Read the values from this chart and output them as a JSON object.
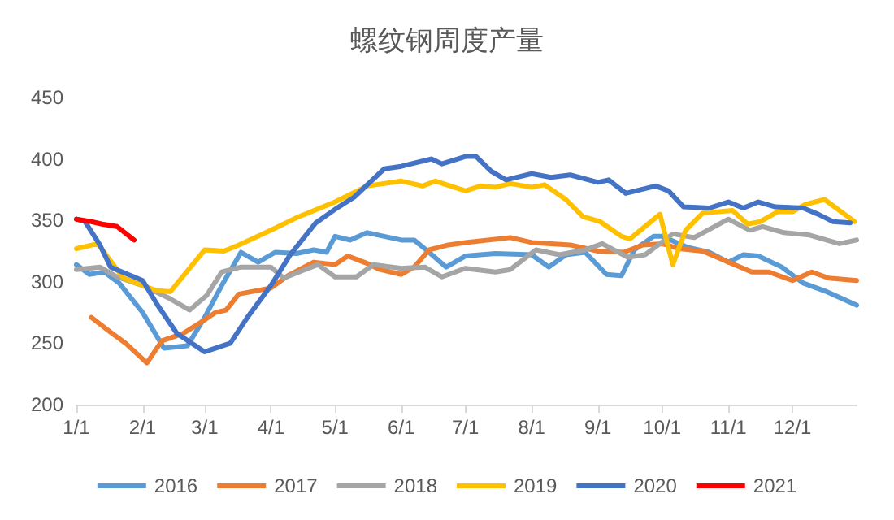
{
  "chart_data": {
    "type": "line",
    "title": "螺纹钢周度产量",
    "xlim": [
      "--01-01",
      "--12-31"
    ],
    "ylim": [
      200,
      450
    ],
    "yticks": [
      200,
      250,
      300,
      350,
      400,
      450
    ],
    "xticks": [
      {
        "value": "--01-01",
        "label": "1/1"
      },
      {
        "value": "--02-01",
        "label": "2/1"
      },
      {
        "value": "--03-01",
        "label": "3/1"
      },
      {
        "value": "--04-01",
        "label": "4/1"
      },
      {
        "value": "--05-01",
        "label": "5/1"
      },
      {
        "value": "--06-01",
        "label": "6/1"
      },
      {
        "value": "--07-01",
        "label": "7/1"
      },
      {
        "value": "--08-01",
        "label": "8/1"
      },
      {
        "value": "--09-01",
        "label": "9/1"
      },
      {
        "value": "--10-01",
        "label": "10/1"
      },
      {
        "value": "--11-01",
        "label": "11/1"
      },
      {
        "value": "--12-01",
        "label": "12/1"
      }
    ],
    "grid": false,
    "legend": "bottom",
    "marker": "none",
    "line_style": "solid",
    "series": [
      {
        "name": "2016",
        "color": "#5b9bd5",
        "x": [
          "--01-01",
          "--01-07",
          "--01-14",
          "--01-21",
          "--02-01",
          "--02-11",
          "--02-22",
          "--03-01",
          "--03-09",
          "--03-18",
          "--03-26",
          "--04-03",
          "--04-13",
          "--04-21",
          "--04-27",
          "--05-01",
          "--05-08",
          "--05-16",
          "--06-01",
          "--06-07",
          "--06-14",
          "--06-22",
          "--07-01",
          "--07-15",
          "--08-01",
          "--08-09",
          "--08-17",
          "--08-26",
          "--09-05",
          "--09-12",
          "--09-18",
          "--09-27",
          "--10-01",
          "--10-13",
          "--10-23",
          "--11-01",
          "--11-08",
          "--11-15",
          "--11-26",
          "--12-06",
          "--12-17",
          "--12-31"
        ],
        "values": [
          314,
          306,
          308,
          299,
          275,
          246,
          248,
          271,
          297,
          324,
          316,
          324,
          323,
          326,
          324,
          337,
          334,
          340,
          334,
          334,
          324,
          312,
          321,
          323,
          322,
          312,
          322,
          324,
          306,
          305,
          326,
          337,
          337,
          328,
          324,
          316,
          322,
          321,
          312,
          299,
          292,
          281
        ]
      },
      {
        "name": "2017",
        "color": "#ed7d31",
        "x": [
          "--01-08",
          "--01-17",
          "--01-24",
          "--02-03",
          "--02-10",
          "--02-20",
          "--03-01",
          "--03-06",
          "--03-11",
          "--03-17",
          "--04-01",
          "--04-09",
          "--04-21",
          "--05-01",
          "--05-07",
          "--05-16",
          "--05-22",
          "--06-01",
          "--06-07",
          "--06-14",
          "--06-23",
          "--07-01",
          "--07-22",
          "--08-01",
          "--08-19",
          "--09-01",
          "--09-13",
          "--09-22",
          "--10-01",
          "--10-09",
          "--10-20",
          "--11-01",
          "--11-12",
          "--11-20",
          "--12-01",
          "--12-10",
          "--12-18",
          "--12-31"
        ],
        "values": [
          271,
          259,
          250,
          234,
          252,
          258,
          269,
          275,
          277,
          290,
          295,
          305,
          316,
          314,
          321,
          315,
          310,
          306,
          312,
          326,
          330,
          332,
          336,
          332,
          330,
          325,
          324,
          330,
          331,
          327,
          325,
          316,
          308,
          308,
          301,
          308,
          303,
          301
        ]
      },
      {
        "name": "2018",
        "color": "#a5a5a5",
        "x": [
          "--01-01",
          "--01-12",
          "--01-20",
          "--02-01",
          "--02-13",
          "--02-23",
          "--03-02",
          "--03-09",
          "--03-18",
          "--04-01",
          "--04-07",
          "--04-17",
          "--04-23",
          "--05-01",
          "--05-11",
          "--05-19",
          "--06-01",
          "--06-12",
          "--06-20",
          "--07-01",
          "--07-15",
          "--07-22",
          "--08-03",
          "--08-14",
          "--08-26",
          "--09-03",
          "--09-15",
          "--09-23",
          "--10-06",
          "--10-16",
          "--11-01",
          "--11-11",
          "--11-17",
          "--11-27",
          "--12-09",
          "--12-23",
          "--12-31"
        ],
        "values": [
          310,
          312,
          304,
          297,
          287,
          277,
          289,
          308,
          312,
          312,
          303,
          310,
          314,
          304,
          304,
          314,
          311,
          312,
          304,
          311,
          308,
          310,
          326,
          322,
          326,
          331,
          320,
          322,
          339,
          336,
          351,
          342,
          345,
          340,
          338,
          331,
          334
        ]
      },
      {
        "name": "2019",
        "color": "#ffc000",
        "x": [
          "--01-01",
          "--01-11",
          "--01-23",
          "--02-07",
          "--02-14",
          "--03-01",
          "--03-10",
          "--03-17",
          "--04-01",
          "--04-14",
          "--05-01",
          "--05-16",
          "--06-01",
          "--06-11",
          "--06-17",
          "--07-01",
          "--07-08",
          "--07-15",
          "--07-22",
          "--08-01",
          "--08-07",
          "--08-17",
          "--08-25",
          "--09-02",
          "--09-12",
          "--09-16",
          "--09-30",
          "--10-06",
          "--10-12",
          "--10-20",
          "--11-03",
          "--11-10",
          "--11-16",
          "--11-24",
          "--12-01",
          "--12-07",
          "--12-16",
          "--12-30"
        ],
        "values": [
          327,
          331,
          303,
          293,
          292,
          326,
          325,
          330,
          342,
          353,
          365,
          378,
          382,
          378,
          382,
          374,
          378,
          377,
          380,
          377,
          379,
          367,
          353,
          349,
          337,
          335,
          355,
          314,
          342,
          356,
          358,
          347,
          349,
          357,
          357,
          363,
          367,
          349
        ]
      },
      {
        "name": "2020",
        "color": "#4472c4",
        "x": [
          "--01-01",
          "--01-05",
          "--01-12",
          "--01-17",
          "--02-01",
          "--02-08",
          "--02-17",
          "--03-01",
          "--03-13",
          "--03-21",
          "--04-01",
          "--04-10",
          "--04-22",
          "--05-01",
          "--05-10",
          "--05-24",
          "--06-01",
          "--06-15",
          "--06-20",
          "--07-01",
          "--07-06",
          "--07-13",
          "--07-20",
          "--08-01",
          "--08-10",
          "--08-19",
          "--09-01",
          "--09-06",
          "--09-14",
          "--09-28",
          "--10-04",
          "--10-11",
          "--10-23",
          "--11-01",
          "--11-08",
          "--11-15",
          "--11-23",
          "--12-06",
          "--12-13",
          "--12-20",
          "--12-28"
        ],
        "values": [
          351,
          349,
          330,
          312,
          301,
          281,
          258,
          243,
          250,
          271,
          297,
          322,
          348,
          359,
          369,
          392,
          394,
          400,
          396,
          402,
          402,
          390,
          383,
          388,
          385,
          387,
          381,
          383,
          372,
          378,
          374,
          361,
          360,
          365,
          360,
          365,
          361,
          360,
          355,
          349,
          348
        ]
      },
      {
        "name": "2021",
        "color": "#ff0000",
        "x": [
          "--01-01",
          "--01-08",
          "--01-13",
          "--01-20",
          "--01-28"
        ],
        "values": [
          351,
          349,
          347,
          345,
          334
        ]
      }
    ]
  }
}
